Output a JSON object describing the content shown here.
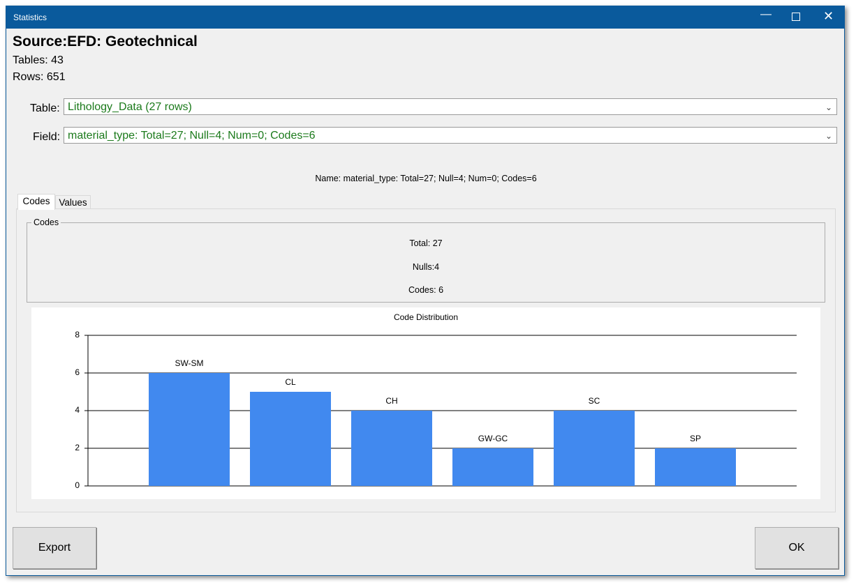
{
  "window": {
    "title": "Statistics"
  },
  "header": {
    "source": "Source:EFD: Geotechnical",
    "tables": "Tables: 43",
    "rows": "Rows: 651"
  },
  "selectors": {
    "table_label": "Table:",
    "table_value": "Lithology_Data (27 rows)",
    "field_label": "Field:",
    "field_value": "material_type: Total=27; Null=4; Num=0; Codes=6"
  },
  "name_line": "Name: material_type: Total=27; Null=4; Num=0; Codes=6",
  "tabs": [
    "Codes",
    "Values"
  ],
  "codes_group": {
    "title": "Codes",
    "total": "Total: 27",
    "nulls": "Nulls:4",
    "codes": "Codes: 6"
  },
  "chart_data": {
    "type": "bar",
    "title": "Code Distribution",
    "categories": [
      "SW-SM",
      "CL",
      "CH",
      "GW-GC",
      "SC",
      "SP"
    ],
    "values": [
      6,
      5,
      4,
      2,
      4,
      2
    ],
    "color": "#4189ef",
    "ylim": [
      0,
      8
    ],
    "yticks": [
      0,
      2,
      4,
      6,
      8
    ],
    "grid": true
  },
  "buttons": {
    "export": "Export",
    "ok": "OK"
  }
}
